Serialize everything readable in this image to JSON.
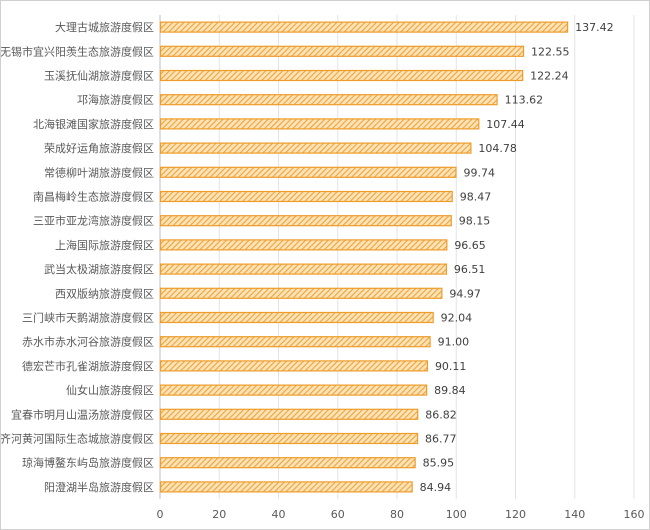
{
  "chart_data": {
    "type": "bar",
    "orientation": "horizontal",
    "categories": [
      "大理古城旅游度假区",
      "无锡市宜兴阳羡生态旅游度假区",
      "玉溪抚仙湖旅游度假区",
      "邛海旅游度假区",
      "北海银滩国家旅游度假区",
      "荣成好运角旅游度假区",
      "常德柳叶湖旅游度假区",
      "南昌梅岭生态旅游度假区",
      "三亚市亚龙湾旅游度假区",
      "上海国际旅游度假区",
      "武当太极湖旅游度假区",
      "西双版纳旅游度假区",
      "三门峡市天鹅湖旅游度假区",
      "赤水市赤水河谷旅游度假区",
      "德宏芒市孔雀湖旅游度假区",
      "仙女山旅游度假区",
      "宜春市明月山温汤旅游度假区",
      "齐河黄河国际生态城旅游度假区",
      "琼海博鳌东屿岛旅游度假区",
      "阳澄湖半岛旅游度假区"
    ],
    "values": [
      137.42,
      122.55,
      122.24,
      113.62,
      107.44,
      104.78,
      99.74,
      98.47,
      98.15,
      96.65,
      96.51,
      94.97,
      92.04,
      91.0,
      90.11,
      89.84,
      86.82,
      86.77,
      85.95,
      84.94
    ],
    "value_labels": [
      "137.42",
      "122.55",
      "122.24",
      "113.62",
      "107.44",
      "104.78",
      "99.74",
      "98.47",
      "98.15",
      "96.65",
      "96.51",
      "94.97",
      "92.04",
      "91.00",
      "90.11",
      "89.84",
      "86.82",
      "86.77",
      "85.95",
      "84.94"
    ],
    "xlim": [
      0,
      160
    ],
    "xticks": [
      "0",
      "20",
      "40",
      "60",
      "80",
      "100",
      "120",
      "140",
      "160"
    ],
    "grid": true,
    "legend": "none",
    "bar_color": "#F0A030",
    "bar_fill": "hatched"
  }
}
